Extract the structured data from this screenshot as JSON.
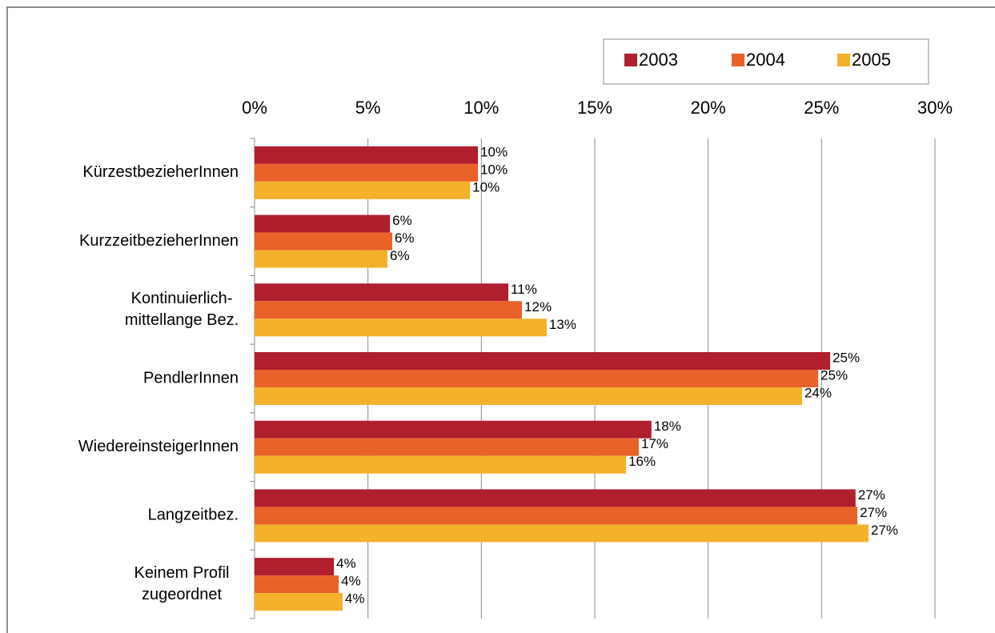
{
  "chart_data": {
    "type": "barh",
    "categories": [
      "KürzestbezieherInnen",
      "KurzzeitbezieherInnen",
      [
        "Kontinuierlich-",
        "mittellange Bez."
      ],
      "PendlerInnen",
      "WiedereinsteigerInnen",
      "Langzeitbez.",
      [
        "Keinem Profil",
        "zugeordnet"
      ]
    ],
    "series": [
      {
        "name": "2003",
        "color": "#b01f2e",
        "values": [
          9.85,
          5.97,
          11.19,
          25.38,
          17.5,
          26.5,
          3.5
        ],
        "value_labels": [
          "10%",
          "6%",
          "11%",
          "25%",
          "18%",
          "27%",
          "4%"
        ]
      },
      {
        "name": "2004",
        "color": "#e8622a",
        "values": [
          9.85,
          6.07,
          11.79,
          24.85,
          16.94,
          26.58,
          3.71
        ],
        "value_labels": [
          "10%",
          "6%",
          "12%",
          "25%",
          "17%",
          "27%",
          "4%"
        ]
      },
      {
        "name": "2005",
        "color": "#f4b12b",
        "values": [
          9.5,
          5.86,
          12.88,
          24.14,
          16.38,
          27.07,
          3.88
        ],
        "value_labels": [
          "10%",
          "6%",
          "13%",
          "24%",
          "16%",
          "27%",
          "4%"
        ]
      }
    ],
    "xlim": [
      0,
      30
    ],
    "xticks": [
      {
        "value": 0,
        "label": "0%"
      },
      {
        "value": 5,
        "label": "5%"
      },
      {
        "value": 10,
        "label": "10%"
      },
      {
        "value": 15,
        "label": "15%"
      },
      {
        "value": 20,
        "label": "20%"
      },
      {
        "value": 25,
        "label": "25%"
      },
      {
        "value": 30,
        "label": "30%"
      }
    ],
    "grid": true,
    "legend": "top-right"
  }
}
